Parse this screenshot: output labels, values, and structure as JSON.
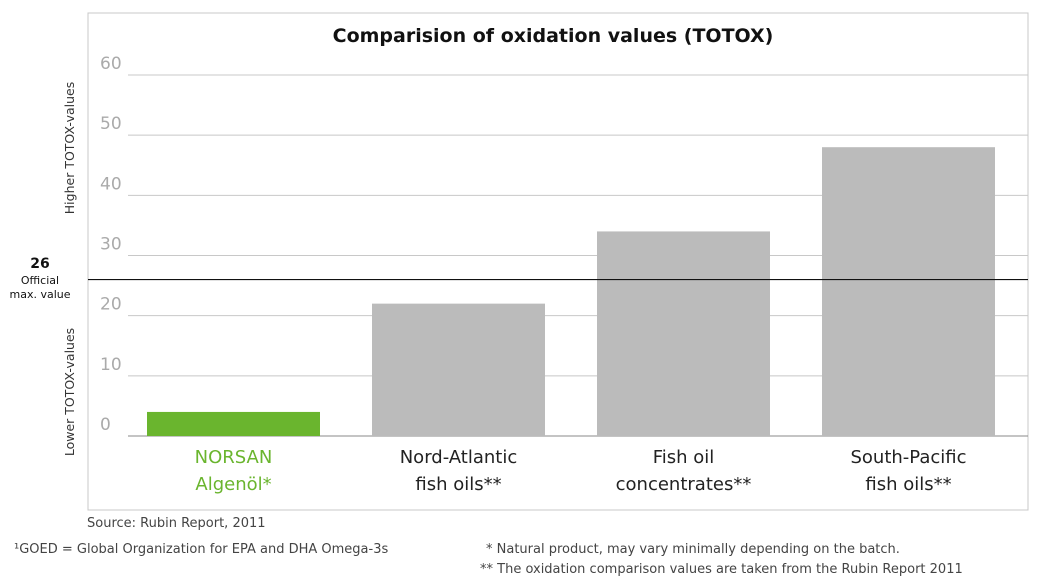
{
  "chart_data": {
    "type": "bar",
    "title": "Comparision of oxidation values (TOTOX)",
    "categories": [
      [
        "NORSAN",
        "Algenöl*"
      ],
      [
        "Nord-Atlantic",
        "fish oils**"
      ],
      [
        "Fish oil",
        "concentrates**"
      ],
      [
        "South-Pacific",
        "fish oils**"
      ]
    ],
    "values": [
      4,
      22,
      34,
      48
    ],
    "bar_colors": [
      "#6ab52e",
      "#bbbbbb",
      "#bbbbbb",
      "#bbbbbb"
    ],
    "highlight_color": "#6ab52e",
    "ylim": [
      0,
      60
    ],
    "yticks": [
      0,
      10,
      20,
      30,
      40,
      50,
      60
    ],
    "grid": true,
    "reference_line": {
      "value": 26,
      "value_label": "26",
      "label": [
        "Official",
        "max. value"
      ]
    },
    "ylabel_upper": "Higher TOTOX-values",
    "ylabel_lower": "Lower TOTOX-values"
  },
  "footer": {
    "source": "Source: Rubin Report, 2011",
    "goed_note": "¹GOED = Global Organization for EPA and DHA Omega-3s",
    "note1": "* Natural product, may vary minimally depending on the batch.",
    "note2": "** The oxidation comparison values are taken from the Rubin Report 2011"
  }
}
